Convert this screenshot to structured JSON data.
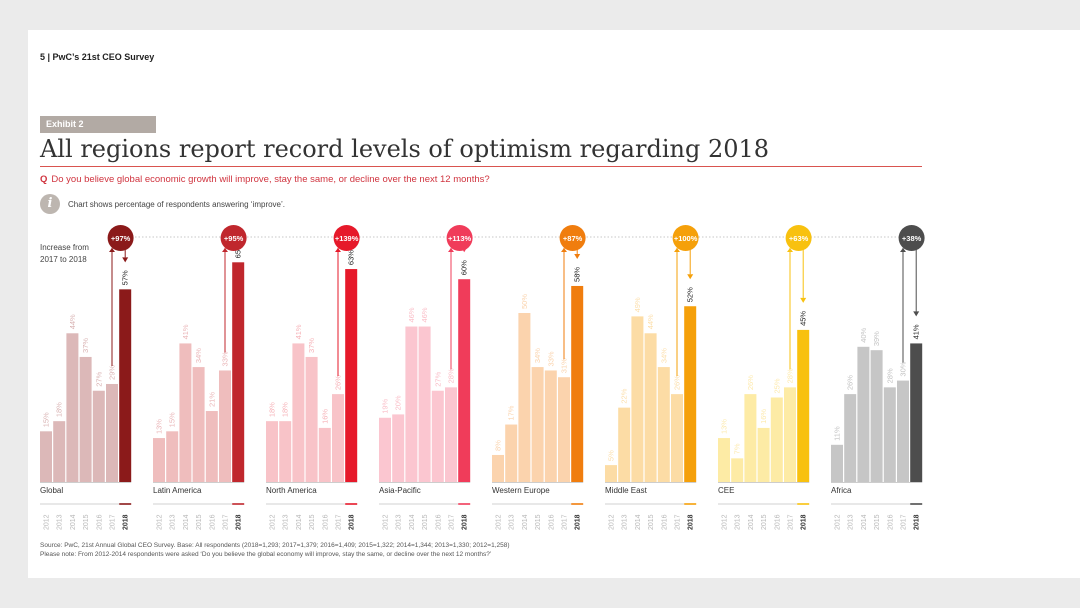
{
  "header": {
    "page_label": "5  |  PwC’s 21st CEO Survey"
  },
  "exhibit_label": "Exhibit 2",
  "title": "All regions report record levels of optimism regarding 2018",
  "question": {
    "q": "Q",
    "text": "Do you believe global economic growth will improve, stay the same, or decline over the next 12 months?"
  },
  "info_icon": "info-icon",
  "chart_note": "Chart shows percentage of respondents answering ‘improve’.",
  "increase_label_line1": "Increase from",
  "increase_label_line2": "2017 to 2018",
  "source_line1": "Source: PwC, 21st Annual Global CEO Survey. Base: All respondents (2018=1,293; 2017=1,379; 2016=1,409; 2015=1,322; 2014=1,344; 2013=1,330; 2012=1,258)",
  "source_line2": "Please note: From 2012-2014 respondents were asked ‘Do you believe the global economy will improve, stay the same, or decline over the next 12 months?’",
  "chart_data": {
    "type": "bar",
    "years": [
      "2012",
      "2013",
      "2014",
      "2015",
      "2016",
      "2017",
      "2018"
    ],
    "ylim": [
      0,
      70
    ],
    "series": [
      {
        "name": "Global",
        "increase": "+97%",
        "values": [
          15,
          18,
          44,
          37,
          27,
          29,
          57
        ],
        "labels": [
          "15%",
          "18%",
          "44%",
          "37%",
          "27%",
          "29%",
          "57%"
        ],
        "color": "#8b1a1a",
        "light": "#dcb8b8"
      },
      {
        "name": "Latin America",
        "increase": "+95%",
        "values": [
          13,
          15,
          41,
          34,
          21,
          33,
          65
        ],
        "labels": [
          "13%",
          "15%",
          "41%",
          "34%",
          "21%",
          "33%",
          "65%"
        ],
        "color": "#c0272d",
        "light": "#efbdbd"
      },
      {
        "name": "North America",
        "increase": "+139%",
        "values": [
          18,
          18,
          41,
          37,
          16,
          26,
          63
        ],
        "labels": [
          "18%",
          "18%",
          "41%",
          "37%",
          "16%",
          "26%",
          "63%"
        ],
        "color": "#e6192a",
        "light": "#f8c3c8"
      },
      {
        "name": "Asia-Pacific",
        "increase": "+113%",
        "values": [
          19,
          20,
          46,
          46,
          27,
          28,
          60
        ],
        "labels": [
          "19%",
          "20%",
          "46%",
          "46%",
          "27%",
          "28%",
          "60%"
        ],
        "color": "#f03c5a",
        "light": "#fbc6d0"
      },
      {
        "name": "Western Europe",
        "increase": "+87%",
        "values": [
          8,
          17,
          50,
          34,
          33,
          31,
          58
        ],
        "labels": [
          "8%",
          "17%",
          "50%",
          "34%",
          "33%",
          "31%",
          "58%"
        ],
        "color": "#f07d0e",
        "light": "#fbd3ad"
      },
      {
        "name": "Middle East",
        "increase": "+100%",
        "values": [
          5,
          22,
          49,
          44,
          34,
          26,
          52
        ],
        "labels": [
          "5%",
          "22%",
          "49%",
          "44%",
          "34%",
          "26%",
          "52%"
        ],
        "color": "#f5a00a",
        "light": "#fcdca5"
      },
      {
        "name": "CEE",
        "increase": "+63%",
        "values": [
          13,
          7,
          26,
          16,
          25,
          28,
          45
        ],
        "labels": [
          "13%",
          "7%",
          "26%",
          "16%",
          "25%",
          "28%",
          "45%"
        ],
        "color": "#f8c10f",
        "light": "#fdeba5"
      },
      {
        "name": "Africa",
        "increase": "+38%",
        "values": [
          11,
          26,
          40,
          39,
          28,
          30,
          41
        ],
        "labels": [
          "11%",
          "26%",
          "40%",
          "39%",
          "28%",
          "30%",
          "41%"
        ],
        "color": "#4d4d4d",
        "light": "#c6c6c6"
      }
    ]
  }
}
